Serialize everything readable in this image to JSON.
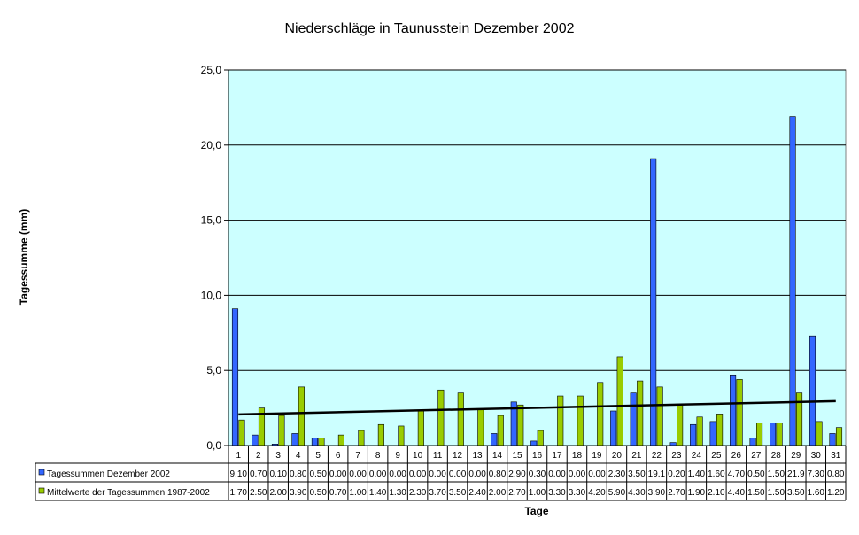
{
  "chart_data": {
    "type": "bar",
    "title": "Niederschläge in Taunusstein Dezember 2002",
    "xlabel": "Tage",
    "ylabel": "Tagessumme (mm)",
    "ylim": [
      0,
      25
    ],
    "yticks": [
      "0,0",
      "5,0",
      "10,0",
      "15,0",
      "20,0",
      "25,0"
    ],
    "grid": true,
    "legend_position": "bottom-left data table",
    "categories": [
      "1",
      "2",
      "3",
      "4",
      "5",
      "6",
      "7",
      "8",
      "9",
      "10",
      "11",
      "12",
      "13",
      "14",
      "15",
      "16",
      "17",
      "18",
      "19",
      "20",
      "21",
      "22",
      "23",
      "24",
      "25",
      "26",
      "27",
      "28",
      "29",
      "30",
      "31"
    ],
    "series": [
      {
        "name": "Tagessummen Dezember 2002",
        "color": "#3366ff",
        "values": [
          9.1,
          0.7,
          0.1,
          0.8,
          0.5,
          0.0,
          0.0,
          0.0,
          0.0,
          0.0,
          0.0,
          0.0,
          0.0,
          0.8,
          2.9,
          0.3,
          0.0,
          0.0,
          0.0,
          2.3,
          3.5,
          19.1,
          0.2,
          1.4,
          1.6,
          4.7,
          0.5,
          1.5,
          21.9,
          7.3,
          0.8
        ],
        "labels": [
          "9.10",
          "0.70",
          "0.10",
          "0.80",
          "0.50",
          "0.00",
          "0.00",
          "0.00",
          "0.00",
          "0.00",
          "0.00",
          "0.00",
          "0.00",
          "0.80",
          "2.90",
          "0.30",
          "0.00",
          "0.00",
          "0.00",
          "2.30",
          "3.50",
          "19.1",
          "0.20",
          "1.40",
          "1.60",
          "4.70",
          "0.50",
          "1.50",
          "21.9",
          "7.30",
          "0.80"
        ]
      },
      {
        "name": "Mittelwerte der Tagessummen 1987-2002",
        "color": "#99cc00",
        "values": [
          1.7,
          2.5,
          2.0,
          3.9,
          0.5,
          0.7,
          1.0,
          1.4,
          1.3,
          2.3,
          3.7,
          3.5,
          2.4,
          2.0,
          2.7,
          1.0,
          3.3,
          3.3,
          4.2,
          5.9,
          4.3,
          3.9,
          2.7,
          1.9,
          2.1,
          4.4,
          1.5,
          1.5,
          3.5,
          1.6,
          1.2
        ],
        "labels": [
          "1.70",
          "2.50",
          "2.00",
          "3.90",
          "0.50",
          "0.70",
          "1.00",
          "1.40",
          "1.30",
          "2.30",
          "3.70",
          "3.50",
          "2.40",
          "2.00",
          "2.70",
          "1.00",
          "3.30",
          "3.30",
          "4.20",
          "5.90",
          "4.30",
          "3.90",
          "2.70",
          "1.90",
          "2.10",
          "4.40",
          "1.50",
          "1.50",
          "3.50",
          "1.60",
          "1.20"
        ]
      }
    ],
    "trendline": {
      "series": "Mittelwerte der Tagessummen 1987-2002",
      "type": "linear",
      "color": "#000000"
    },
    "plot_background": "#ccffff"
  }
}
